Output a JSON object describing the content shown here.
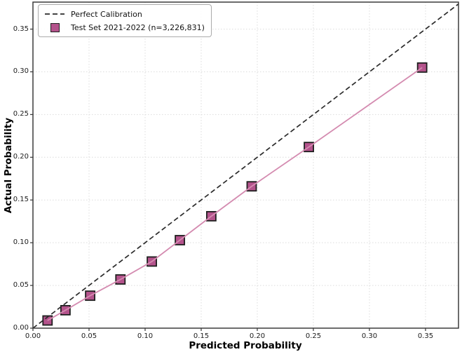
{
  "chart_data": {
    "type": "line",
    "title": "",
    "xlabel": "Predicted Probability",
    "ylabel": "Actual Probability",
    "xlim": [
      0,
      0.3794
    ],
    "ylim": [
      0,
      0.3816
    ],
    "xtick_values": [
      0,
      0.05,
      0.1,
      0.15,
      0.2,
      0.25,
      0.3,
      0.35
    ],
    "xtick_labels": [
      "0.00",
      "0.05",
      "0.10",
      "0.15",
      "0.20",
      "0.25",
      "0.30",
      "0.35"
    ],
    "ytick_values": [
      0,
      0.05,
      0.1,
      0.15,
      0.2,
      0.25,
      0.3,
      0.35
    ],
    "ytick_labels": [
      "0.00",
      "0.05",
      "0.10",
      "0.15",
      "0.20",
      "0.25",
      "0.30",
      "0.35"
    ],
    "grid": true,
    "grid_style": "dotted",
    "grid_color": "#dcdcdc",
    "legend_position": "upper-left",
    "series": [
      {
        "name": "Perfect Calibration",
        "type": "line",
        "line_style": "dashed",
        "color": "#2b2b2b",
        "x": [
          0,
          0.3794
        ],
        "y": [
          0,
          0.3794
        ]
      },
      {
        "name": "Test Set 2021-2022 (n=3,226,831)",
        "type": "line+markers",
        "line_style": "solid",
        "color": "#d48bb0",
        "marker": "square",
        "marker_fill": "#b4538c",
        "marker_edge": "#1f1f1f",
        "x": [
          0.013,
          0.029,
          0.051,
          0.078,
          0.106,
          0.131,
          0.159,
          0.195,
          0.246,
          0.347
        ],
        "y": [
          0.009,
          0.021,
          0.038,
          0.057,
          0.078,
          0.103,
          0.131,
          0.166,
          0.212,
          0.305
        ]
      }
    ]
  }
}
